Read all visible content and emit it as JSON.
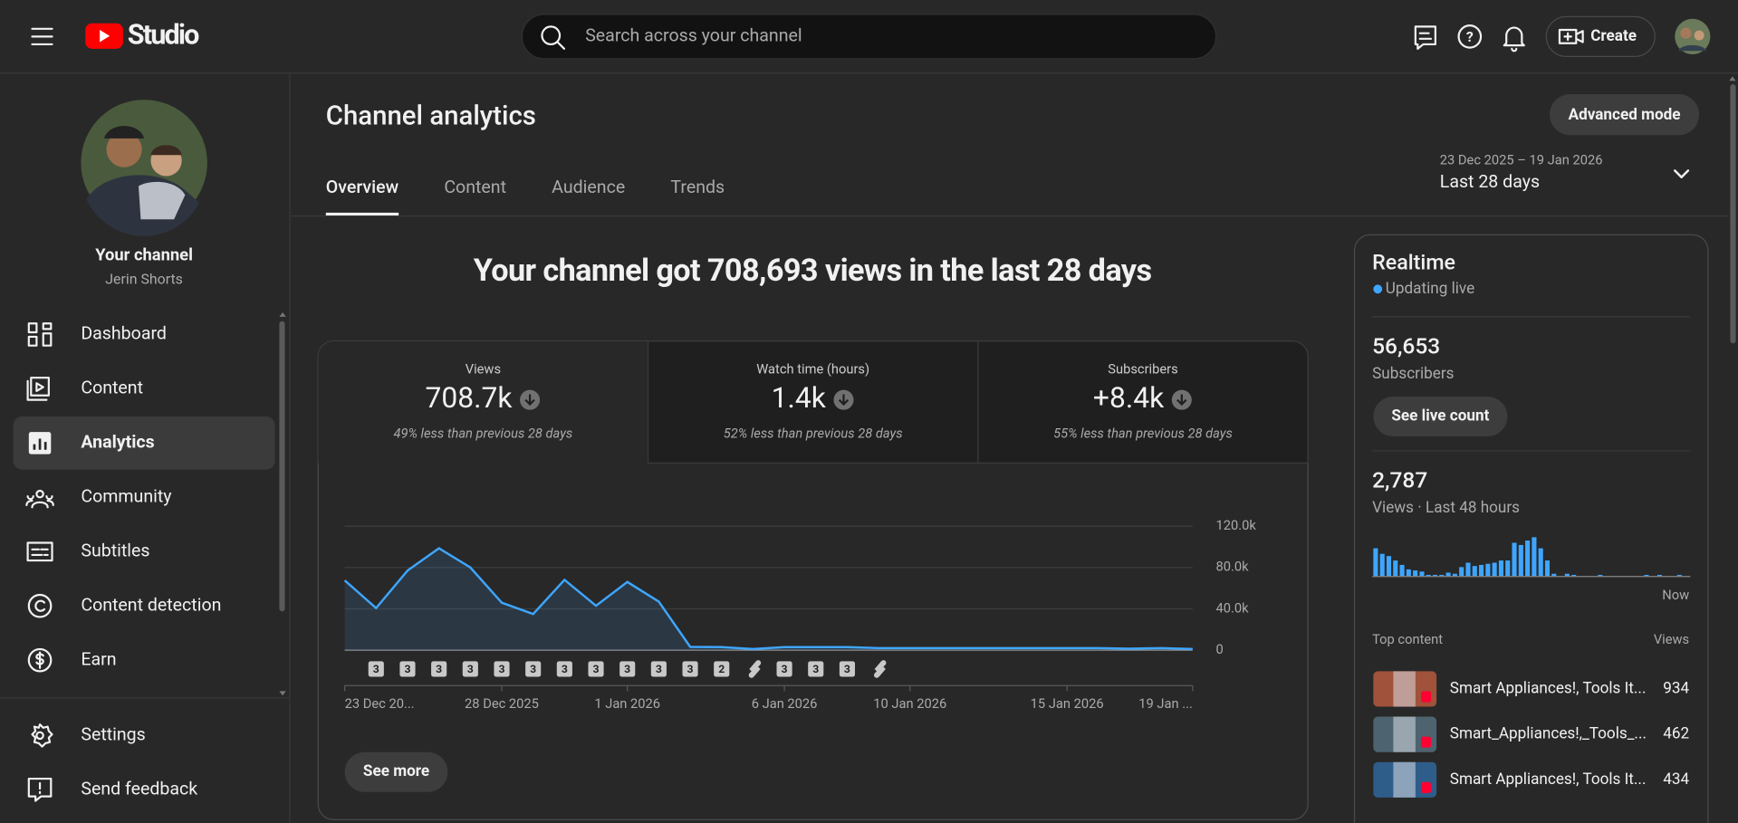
{
  "header": {
    "logo": "Studio",
    "search_placeholder": "Search across your channel",
    "create": "Create"
  },
  "sidebar": {
    "channel_title": "Your channel",
    "channel_name": "Jerin Shorts",
    "nav": [
      "Dashboard",
      "Content",
      "Analytics",
      "Community",
      "Subtitles",
      "Content detection",
      "Earn"
    ],
    "active": "Analytics",
    "footer_nav": [
      "Settings",
      "Send feedback"
    ]
  },
  "page": {
    "title": "Channel analytics",
    "tabs": [
      "Overview",
      "Content",
      "Audience",
      "Trends"
    ],
    "active_tab": "Overview",
    "advanced_mode": "Advanced mode",
    "date_range": "23 Dec 2025 – 19 Jan 2026",
    "period": "Last 28 days",
    "headline": "Your channel got 708,693 views in the last 28 days",
    "see_more": "See more"
  },
  "metrics": [
    {
      "label": "Views",
      "value": "708.7k",
      "note": "49% less than previous 28 days"
    },
    {
      "label": "Watch time (hours)",
      "value": "1.4k",
      "note": "52% less than previous 28 days"
    },
    {
      "label": "Subscribers",
      "value": "+8.4k",
      "note": "55% less than previous 28 days"
    }
  ],
  "chart": {
    "type": "line",
    "categories": [
      "23 Dec 20...",
      null,
      null,
      null,
      null,
      "28 Dec 2025",
      null,
      null,
      null,
      "1 Jan 2026",
      null,
      null,
      null,
      null,
      "6 Jan 2026",
      null,
      null,
      null,
      "10 Jan 2026",
      null,
      null,
      null,
      null,
      "15 Jan 2026",
      null,
      null,
      null,
      "19 Jan ..."
    ],
    "values": [
      67500,
      40700,
      77000,
      98600,
      80000,
      46000,
      35000,
      68000,
      43000,
      66000,
      47000,
      3200,
      3000,
      1200,
      3000,
      3000,
      3000,
      2000,
      2000,
      2000,
      2000,
      2000,
      2000,
      2000,
      2000,
      1500,
      2000,
      1200
    ],
    "color": "#3ea6ff",
    "ylim": [
      0,
      120000
    ],
    "yticks": [
      0,
      {
        "value": 40000,
        "label": "40.0k"
      },
      {
        "value": 80000,
        "label": "80.0k"
      },
      {
        "value": 120000,
        "label": "120.0k"
      }
    ],
    "grid": true,
    "upload_counts": [
      null,
      3,
      3,
      3,
      3,
      3,
      3,
      3,
      3,
      3,
      3,
      3,
      2,
      null,
      3,
      3,
      3,
      null,
      null,
      null,
      null,
      null,
      null,
      null,
      null,
      null,
      null,
      null
    ]
  },
  "realtime": {
    "title": "Realtime",
    "status": "Updating live",
    "subscribers": "56,653",
    "subscribers_label": "Subscribers",
    "live_button": "See live count",
    "views": "2,787",
    "views_label": "Views · Last 48 hours",
    "now": "Now",
    "views_48h": [
      25,
      20,
      18,
      14,
      10,
      6,
      5,
      4,
      1,
      1,
      1,
      3,
      2,
      8,
      12,
      9,
      10,
      11,
      12,
      14,
      14,
      30,
      28,
      32,
      35,
      25,
      14,
      2,
      0,
      2,
      1,
      0,
      0,
      0,
      1,
      0,
      0,
      0,
      0,
      0,
      0,
      1,
      0,
      1,
      0,
      0,
      1,
      0
    ],
    "bar_color": "#3ea6ff",
    "top_content_label": "Top content",
    "views_column": "Views",
    "top_content": [
      {
        "title": "Smart Appliances!, Tools It...",
        "views": "934"
      },
      {
        "title": "Smart_Appliances!,_Tools_...",
        "views": "462"
      },
      {
        "title": "Smart Appliances!, Tools It...",
        "views": "434"
      }
    ]
  }
}
